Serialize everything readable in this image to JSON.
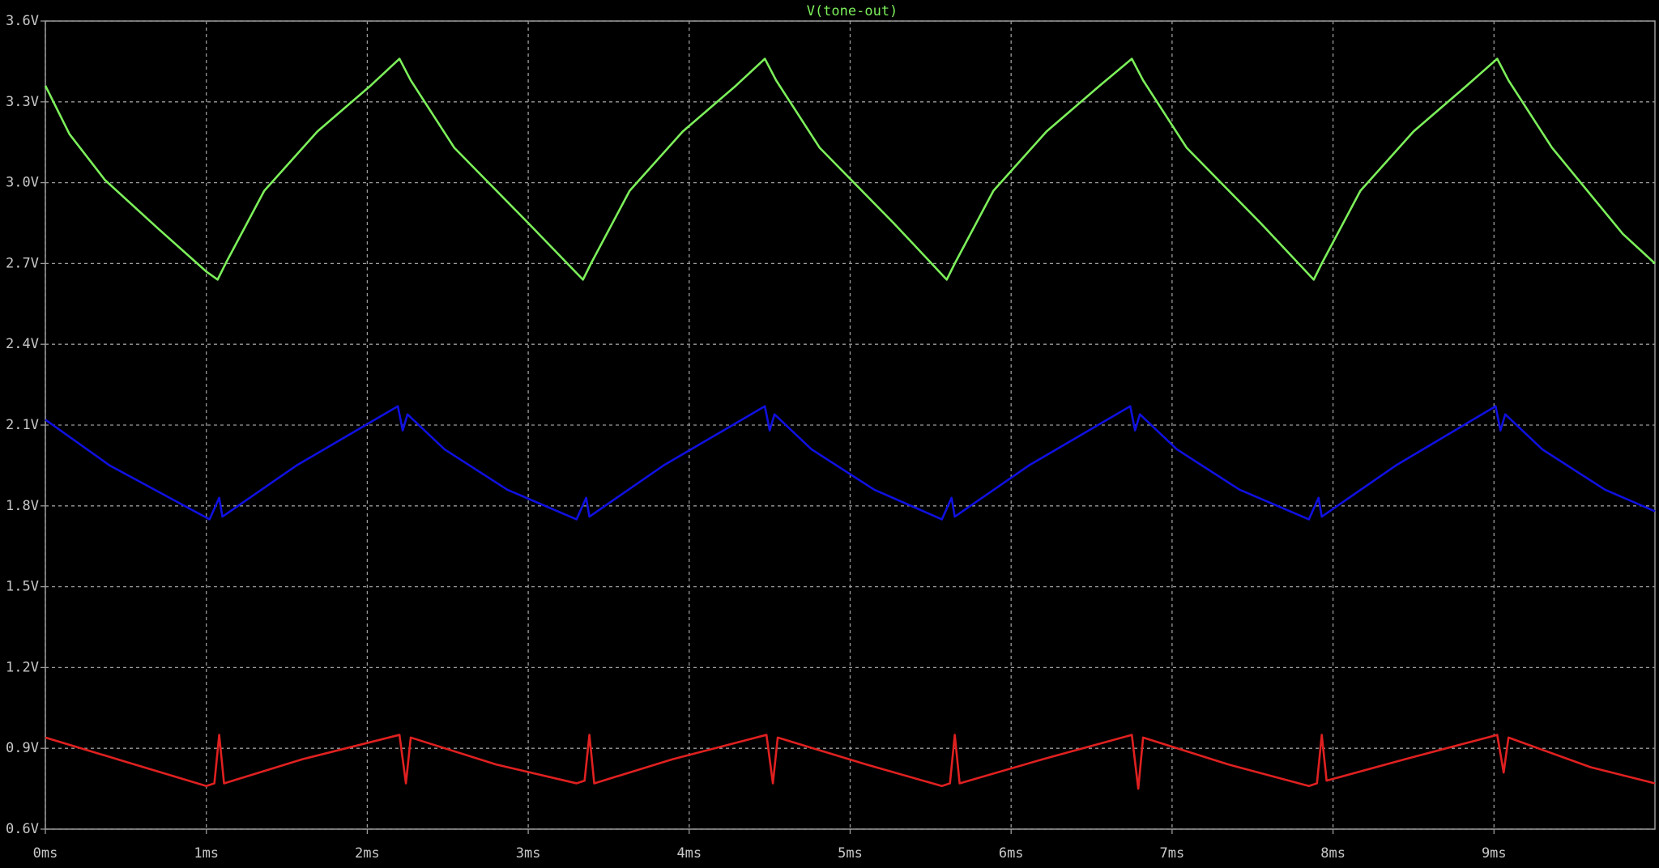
{
  "chart_data": {
    "type": "line",
    "xlim": [
      0,
      10
    ],
    "xticks": [
      {
        "value": 0,
        "label": "0ms"
      },
      {
        "value": 1,
        "label": "1ms"
      },
      {
        "value": 2,
        "label": "2ms"
      },
      {
        "value": 3,
        "label": "3ms"
      },
      {
        "value": 4,
        "label": "4ms"
      },
      {
        "value": 5,
        "label": "5ms"
      },
      {
        "value": 6,
        "label": "6ms"
      },
      {
        "value": 7,
        "label": "7ms"
      },
      {
        "value": 8,
        "label": "8ms"
      },
      {
        "value": 9,
        "label": "9ms"
      }
    ],
    "ylim": [
      0.6,
      3.6
    ],
    "yticks": [
      {
        "value": 0.6,
        "label": "0.6V"
      },
      {
        "value": 0.9,
        "label": "0.9V"
      },
      {
        "value": 1.2,
        "label": "1.2V"
      },
      {
        "value": 1.5,
        "label": "1.5V"
      },
      {
        "value": 1.8,
        "label": "1.8V"
      },
      {
        "value": 2.1,
        "label": "2.1V"
      },
      {
        "value": 2.4,
        "label": "2.4V"
      },
      {
        "value": 2.7,
        "label": "2.7V"
      },
      {
        "value": 3.0,
        "label": "3.0V"
      },
      {
        "value": 3.3,
        "label": "3.3V"
      },
      {
        "value": 3.6,
        "label": "3.6V"
      }
    ],
    "grid": true,
    "series": [
      {
        "name": "V(tone-out)",
        "color": "#7cf05a",
        "x": [
          0,
          0.15,
          0.37,
          0.7,
          1.0,
          1.07,
          1.12,
          1.36,
          1.69,
          2.02,
          2.2,
          2.27,
          2.54,
          3.0,
          3.34,
          3.39,
          3.63,
          3.96,
          4.29,
          4.47,
          4.54,
          4.81,
          5.27,
          5.6,
          5.65,
          5.89,
          6.22,
          6.55,
          6.75,
          6.82,
          7.09,
          7.55,
          7.88,
          7.93,
          8.17,
          8.5,
          8.83,
          9.02,
          9.09,
          9.36,
          9.8,
          10
        ],
        "values": [
          3.36,
          3.18,
          3.01,
          2.83,
          2.67,
          2.64,
          2.7,
          2.97,
          3.19,
          3.36,
          3.46,
          3.38,
          3.13,
          2.85,
          2.64,
          2.7,
          2.97,
          3.19,
          3.36,
          3.46,
          3.38,
          3.13,
          2.85,
          2.64,
          2.7,
          2.97,
          3.19,
          3.36,
          3.46,
          3.38,
          3.13,
          2.85,
          2.64,
          2.7,
          2.97,
          3.19,
          3.36,
          3.46,
          3.38,
          3.13,
          2.81,
          2.7
        ]
      },
      {
        "color": "#1010e0",
        "x": [
          0,
          0.4,
          1.02,
          1.08,
          1.1,
          1.56,
          2.19,
          2.22,
          2.25,
          2.48,
          2.87,
          3.3,
          3.36,
          3.38,
          3.84,
          4.47,
          4.5,
          4.53,
          4.76,
          5.15,
          5.57,
          5.63,
          5.65,
          6.11,
          6.74,
          6.77,
          6.8,
          7.03,
          7.42,
          7.85,
          7.91,
          7.93,
          8.39,
          9.01,
          9.04,
          9.07,
          9.3,
          9.69,
          10
        ],
        "values": [
          2.12,
          1.95,
          1.75,
          1.83,
          1.76,
          1.95,
          2.17,
          2.08,
          2.14,
          2.01,
          1.86,
          1.75,
          1.83,
          1.76,
          1.95,
          2.17,
          2.08,
          2.14,
          2.01,
          1.86,
          1.75,
          1.83,
          1.76,
          1.95,
          2.17,
          2.08,
          2.14,
          2.01,
          1.86,
          1.75,
          1.83,
          1.76,
          1.95,
          2.17,
          2.08,
          2.14,
          2.01,
          1.86,
          1.78
        ]
      },
      {
        "color": "#e02020",
        "x": [
          0,
          0.5,
          1.0,
          1.05,
          1.08,
          1.11,
          1.6,
          2.2,
          2.24,
          2.27,
          2.8,
          3.3,
          3.35,
          3.38,
          3.41,
          3.9,
          4.48,
          4.52,
          4.55,
          5.1,
          5.57,
          5.62,
          5.65,
          5.68,
          6.2,
          6.75,
          6.79,
          6.82,
          7.35,
          7.85,
          7.9,
          7.93,
          7.96,
          8.45,
          9.02,
          9.06,
          9.09,
          9.6,
          10
        ],
        "values": [
          0.94,
          0.85,
          0.76,
          0.77,
          0.95,
          0.77,
          0.86,
          0.95,
          0.77,
          0.94,
          0.84,
          0.77,
          0.78,
          0.95,
          0.77,
          0.86,
          0.95,
          0.77,
          0.94,
          0.84,
          0.76,
          0.77,
          0.95,
          0.77,
          0.86,
          0.95,
          0.75,
          0.94,
          0.84,
          0.76,
          0.77,
          0.95,
          0.78,
          0.86,
          0.95,
          0.81,
          0.94,
          0.83,
          0.77
        ]
      }
    ]
  }
}
